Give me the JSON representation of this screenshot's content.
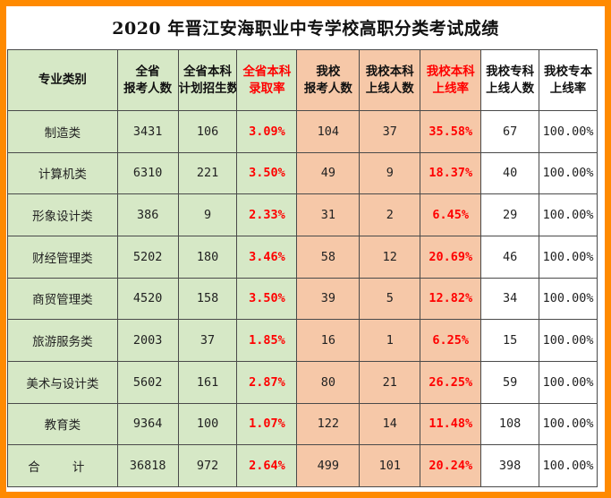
{
  "title": "2020 年晋江安海职业中专学校高职分类考试成绩",
  "headers": [
    {
      "l1": "专业类别",
      "l2": ""
    },
    {
      "l1": "全省",
      "l2": "报考人数"
    },
    {
      "l1": "全省本科",
      "l2": "计划招生数"
    },
    {
      "l1": "全省本科",
      "l2": "录取率"
    },
    {
      "l1": "我校",
      "l2": "报考人数"
    },
    {
      "l1": "我校本科",
      "l2": "上线人数"
    },
    {
      "l1": "我校本科",
      "l2": "上线率"
    },
    {
      "l1": "我校专科",
      "l2": "上线人数"
    },
    {
      "l1": "我校专本",
      "l2": "上线率"
    }
  ],
  "rows": [
    {
      "cat": "制造类",
      "prov_apply": "3431",
      "prov_plan": "106",
      "prov_rate": "3.09%",
      "school_apply": "104",
      "school_ben_pass": "37",
      "school_ben_rate": "35.58%",
      "school_zhuan_pass": "67",
      "school_total_rate": "100.00%"
    },
    {
      "cat": "计算机类",
      "prov_apply": "6310",
      "prov_plan": "221",
      "prov_rate": "3.50%",
      "school_apply": "49",
      "school_ben_pass": "9",
      "school_ben_rate": "18.37%",
      "school_zhuan_pass": "40",
      "school_total_rate": "100.00%"
    },
    {
      "cat": "形象设计类",
      "prov_apply": "386",
      "prov_plan": "9",
      "prov_rate": "2.33%",
      "school_apply": "31",
      "school_ben_pass": "2",
      "school_ben_rate": "6.45%",
      "school_zhuan_pass": "29",
      "school_total_rate": "100.00%"
    },
    {
      "cat": "财经管理类",
      "prov_apply": "5202",
      "prov_plan": "180",
      "prov_rate": "3.46%",
      "school_apply": "58",
      "school_ben_pass": "12",
      "school_ben_rate": "20.69%",
      "school_zhuan_pass": "46",
      "school_total_rate": "100.00%"
    },
    {
      "cat": "商贸管理类",
      "prov_apply": "4520",
      "prov_plan": "158",
      "prov_rate": "3.50%",
      "school_apply": "39",
      "school_ben_pass": "5",
      "school_ben_rate": "12.82%",
      "school_zhuan_pass": "34",
      "school_total_rate": "100.00%"
    },
    {
      "cat": "旅游服务类",
      "prov_apply": "2003",
      "prov_plan": "37",
      "prov_rate": "1.85%",
      "school_apply": "16",
      "school_ben_pass": "1",
      "school_ben_rate": "6.25%",
      "school_zhuan_pass": "15",
      "school_total_rate": "100.00%"
    },
    {
      "cat": "美术与设计类",
      "prov_apply": "5602",
      "prov_plan": "161",
      "prov_rate": "2.87%",
      "school_apply": "80",
      "school_ben_pass": "21",
      "school_ben_rate": "26.25%",
      "school_zhuan_pass": "59",
      "school_total_rate": "100.00%"
    },
    {
      "cat": "教育类",
      "prov_apply": "9364",
      "prov_plan": "100",
      "prov_rate": "1.07%",
      "school_apply": "122",
      "school_ben_pass": "14",
      "school_ben_rate": "11.48%",
      "school_zhuan_pass": "108",
      "school_total_rate": "100.00%"
    },
    {
      "cat": "合 计",
      "prov_apply": "36818",
      "prov_plan": "972",
      "prov_rate": "2.64%",
      "school_apply": "499",
      "school_ben_pass": "101",
      "school_ben_rate": "20.24%",
      "school_zhuan_pass": "398",
      "school_total_rate": "100.00%"
    }
  ],
  "colors": {
    "frame": "#ff8a00",
    "green": "#d6e8c6",
    "peach": "#f6c8a8",
    "highlight_text": "#ff0000"
  }
}
